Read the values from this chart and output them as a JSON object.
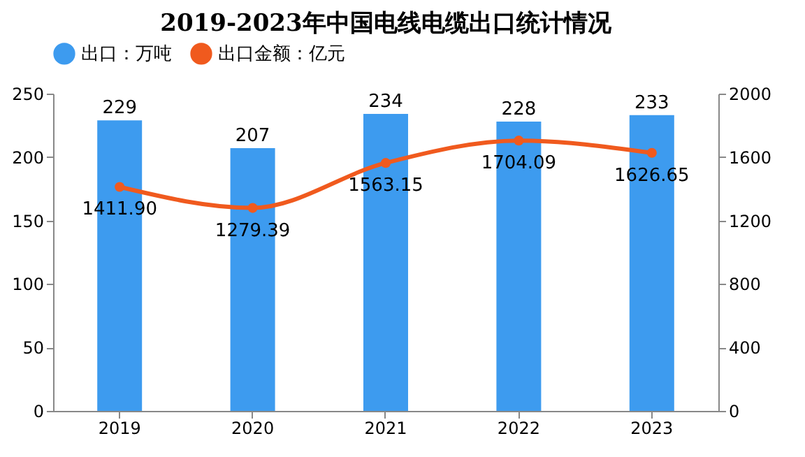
{
  "chart_data": {
    "type": "bar",
    "title": "2019-2023年中国电线电缆出口统计情况",
    "categories": [
      "2019",
      "2020",
      "2021",
      "2022",
      "2023"
    ],
    "series": [
      {
        "name": "出口：万吨",
        "color": "#3d9bef",
        "values": [
          229,
          207,
          234,
          228,
          233
        ]
      },
      {
        "name": "出口金额：亿元",
        "type": "line",
        "axis": "y2",
        "color": "#f05a1e",
        "values": [
          1411.9,
          1279.39,
          1563.15,
          1704.09,
          1626.65
        ],
        "value_labels": [
          "1411.90",
          "1279.39",
          "1563.15",
          "1704.09",
          "1626.65"
        ]
      }
    ],
    "data_labels": true,
    "ylim": [
      0,
      250
    ],
    "yticks": [
      0,
      50,
      100,
      150,
      200,
      250
    ],
    "y2lim": [
      0,
      2000
    ],
    "y2ticks": [
      0,
      400,
      800,
      1200,
      1600,
      2000
    ],
    "legend": "top",
    "grid": false,
    "marker": "circle",
    "line_style": "solid"
  }
}
